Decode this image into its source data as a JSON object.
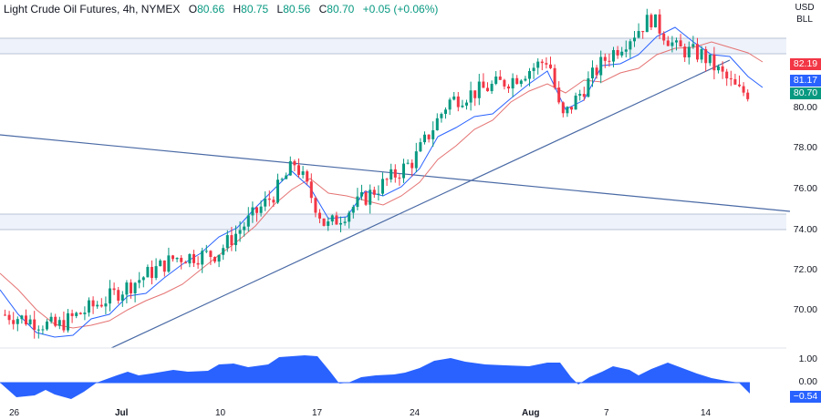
{
  "header": {
    "symbol": "Light Crude Oil Futures, 4h, NYMEX",
    "open_label": "O",
    "open": "80.66",
    "high_label": "H",
    "high": "80.75",
    "low_label": "L",
    "low": "80.56",
    "close_label": "C",
    "close": "80.70",
    "change": "+0.05 (+0.06%)"
  },
  "price_axis": {
    "unit_line1": "USD",
    "unit_line2": "BLL",
    "ticks": [
      "80.00",
      "78.00",
      "76.00",
      "74.00",
      "72.00",
      "70.00"
    ],
    "tags": {
      "ma_slow": {
        "value": "82.19",
        "color": "#f23645"
      },
      "ma_fast": {
        "value": "81.17",
        "color": "#2962ff"
      },
      "last_price": {
        "value": "80.70",
        "color": "#089981"
      }
    }
  },
  "oscillator_axis": {
    "ticks": [
      "1.00",
      "0.00"
    ],
    "current": {
      "value": "−0.54",
      "color": "#2962ff"
    }
  },
  "time_axis": {
    "labels": [
      "26",
      "Jul",
      "10",
      "17",
      "24",
      "Aug",
      "7",
      "14"
    ]
  },
  "colors": {
    "up": "#089981",
    "down": "#f23645",
    "ma_fast": "#2962ff",
    "ma_slow": "#e57373",
    "trendline": "#4a6aa5",
    "zone_fill": "#eef2fa",
    "zone_border": "#b8c4d6",
    "oscillator": "#2962ff"
  },
  "chart_data": {
    "type": "candlestick",
    "title": "Light Crude Oil Futures, 4h, NYMEX",
    "ylabel": "USD/BLL",
    "ylim": [
      68.8,
      85.2
    ],
    "x_labels": [
      "26",
      "Jul",
      "10",
      "17",
      "24",
      "Aug",
      "7",
      "14"
    ],
    "last": {
      "open": 80.66,
      "high": 80.75,
      "low": 80.56,
      "close": 80.7,
      "change": 0.05,
      "change_pct": 0.06
    },
    "indicators": [
      {
        "name": "MA fast",
        "color": "#2962ff",
        "last": 81.17
      },
      {
        "name": "MA slow",
        "color": "#e57373",
        "last": 82.19
      }
    ],
    "zones": [
      {
        "name": "resistance",
        "from": 82.6,
        "to": 83.8
      },
      {
        "name": "support",
        "from": 74.0,
        "to": 74.7
      }
    ],
    "trendlines": [
      {
        "name": "descending",
        "start": {
          "x": "Jun 22",
          "y": 78.6
        },
        "end": {
          "x": "Aug 18",
          "y": 74.8
        }
      },
      {
        "name": "ascending",
        "start": {
          "x": "Jun 30",
          "y": 69.0
        },
        "end": {
          "x": "Aug 16",
          "y": 82.2
        }
      }
    ],
    "approx_closes": [
      {
        "date": "Jun 26",
        "close": 69.8
      },
      {
        "date": "Jun 29",
        "close": 69.2
      },
      {
        "date": "Jul 3",
        "close": 70.7
      },
      {
        "date": "Jul 7",
        "close": 72.6
      },
      {
        "date": "Jul 10",
        "close": 72.8
      },
      {
        "date": "Jul 13",
        "close": 75.8
      },
      {
        "date": "Jul 14",
        "close": 77.3
      },
      {
        "date": "Jul 18",
        "close": 74.1
      },
      {
        "date": "Jul 20",
        "close": 75.6
      },
      {
        "date": "Jul 24",
        "close": 77.4
      },
      {
        "date": "Jul 27",
        "close": 80.3
      },
      {
        "date": "Aug 1",
        "close": 81.4
      },
      {
        "date": "Aug 3",
        "close": 82.4
      },
      {
        "date": "Aug 4",
        "close": 79.4
      },
      {
        "date": "Aug 7",
        "close": 82.3
      },
      {
        "date": "Aug 10",
        "close": 84.4
      },
      {
        "date": "Aug 11",
        "close": 82.9
      },
      {
        "date": "Aug 14",
        "close": 82.6
      },
      {
        "date": "Aug 16",
        "close": 80.8
      },
      {
        "date": "Aug 17",
        "close": 80.7
      }
    ],
    "oscillator": {
      "ylim": [
        -1.0,
        1.3
      ],
      "ticks": [
        1.0,
        0.0
      ],
      "last": -0.54,
      "approx_values": [
        {
          "date": "Jun 26",
          "value": -0.3
        },
        {
          "date": "Jun 28",
          "value": -0.5
        },
        {
          "date": "Jul 1",
          "value": 0.2
        },
        {
          "date": "Jul 8",
          "value": 0.5
        },
        {
          "date": "Jul 14",
          "value": 1.0
        },
        {
          "date": "Jul 18",
          "value": -0.05
        },
        {
          "date": "Jul 24",
          "value": 0.3
        },
        {
          "date": "Jul 28",
          "value": 0.9
        },
        {
          "date": "Aug 3",
          "value": 0.6
        },
        {
          "date": "Aug 4",
          "value": -0.05
        },
        {
          "date": "Aug 8",
          "value": 0.5
        },
        {
          "date": "Aug 11",
          "value": 0.7
        },
        {
          "date": "Aug 14",
          "value": 0.1
        },
        {
          "date": "Aug 17",
          "value": -0.54
        }
      ]
    }
  }
}
